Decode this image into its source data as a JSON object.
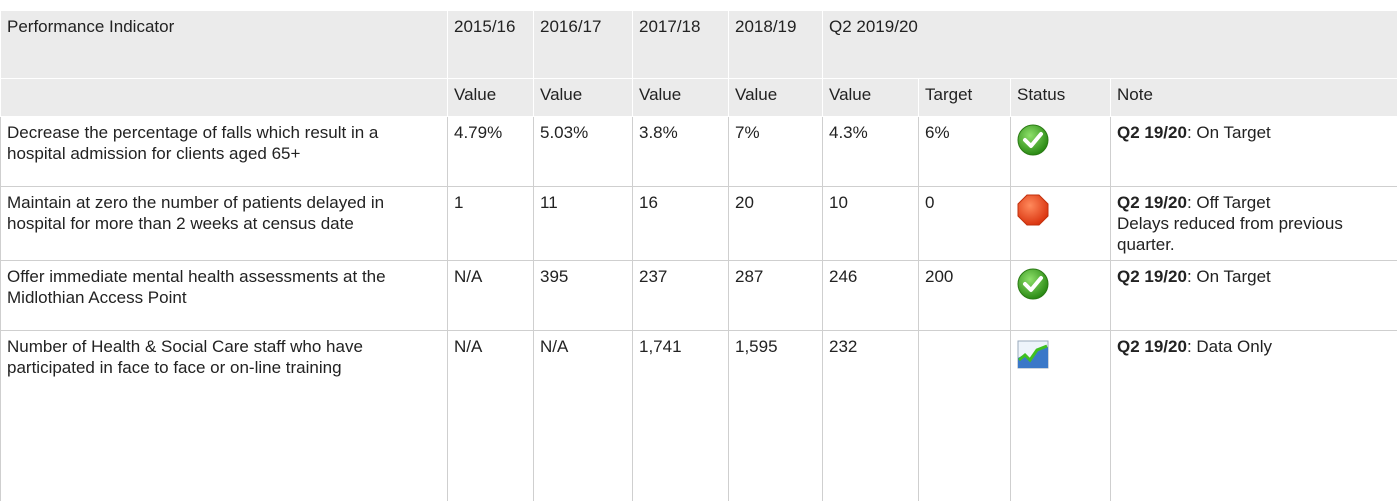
{
  "table": {
    "header": [
      "Performance Indicator",
      "2015/16",
      "2016/17",
      "2017/18",
      "2018/19",
      "Q2 2019/20"
    ],
    "subheader": [
      "Value",
      "Value",
      "Value",
      "Value",
      "Value",
      "Target",
      "Status",
      "Note"
    ],
    "rows": [
      {
        "indicator": "Decrease the percentage of falls which result in a hospital admission for clients aged 65+",
        "values": [
          "4.79%",
          "5.03%",
          "3.8%",
          "7%",
          "4.3%",
          "6%"
        ],
        "note_label": "Q2 19/20",
        "note": [
          ": On Target"
        ]
      },
      {
        "indicator": "Maintain at zero the number of patients delayed in hospital for more than 2 weeks at census date",
        "values": [
          "1",
          "11",
          "16",
          "20",
          "10",
          "0"
        ],
        "note_label": "Q2 19/20",
        "note": [
          ": Off Target",
          "Delays reduced from previous quarter."
        ]
      },
      {
        "indicator": "Offer immediate mental health assessments at the Midlothian Access Point",
        "values": [
          "N/A",
          "395",
          "237",
          "287",
          "246",
          "200"
        ],
        "note_label": "Q2 19/20",
        "note": [
          ": On Target"
        ]
      },
      {
        "indicator": "Number of Health & Social Care staff who have participated in face to face or on-line training",
        "values": [
          "N/A",
          "N/A",
          "1,741",
          "1,595",
          "232"
        ],
        "note_label": "Q2 19/20",
        "note": [
          ": Data Only"
        ]
      }
    ]
  }
}
